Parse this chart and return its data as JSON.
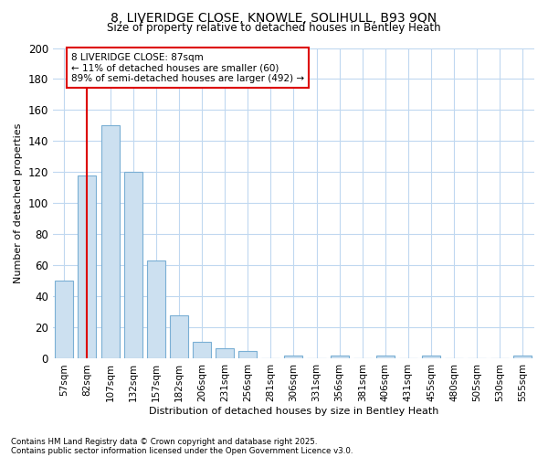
{
  "title_line1": "8, LIVERIDGE CLOSE, KNOWLE, SOLIHULL, B93 9QN",
  "title_line2": "Size of property relative to detached houses in Bentley Heath",
  "xlabel": "Distribution of detached houses by size in Bentley Heath",
  "ylabel": "Number of detached properties",
  "categories": [
    "57sqm",
    "82sqm",
    "107sqm",
    "132sqm",
    "157sqm",
    "182sqm",
    "206sqm",
    "231sqm",
    "256sqm",
    "281sqm",
    "306sqm",
    "331sqm",
    "356sqm",
    "381sqm",
    "406sqm",
    "431sqm",
    "455sqm",
    "480sqm",
    "505sqm",
    "530sqm",
    "555sqm"
  ],
  "values": [
    50,
    118,
    150,
    120,
    63,
    28,
    11,
    7,
    5,
    0,
    2,
    0,
    2,
    0,
    2,
    0,
    2,
    0,
    0,
    0,
    2
  ],
  "bar_color": "#cce0f0",
  "bar_edge_color": "#7aafd4",
  "vline_x_index": 1,
  "vline_color": "#dd0000",
  "box_edge_color": "#dd0000",
  "annotation_line1": "8 LIVERIDGE CLOSE: 87sqm",
  "annotation_line2": "← 11% of detached houses are smaller (60)",
  "annotation_line3": "89% of semi-detached houses are larger (492) →",
  "ylim": [
    0,
    200
  ],
  "yticks": [
    0,
    20,
    40,
    60,
    80,
    100,
    120,
    140,
    160,
    180,
    200
  ],
  "footer_line1": "Contains HM Land Registry data © Crown copyright and database right 2025.",
  "footer_line2": "Contains public sector information licensed under the Open Government Licence v3.0.",
  "bg_color": "#ffffff",
  "plot_bg_color": "#ffffff",
  "grid_color": "#c0d8f0"
}
